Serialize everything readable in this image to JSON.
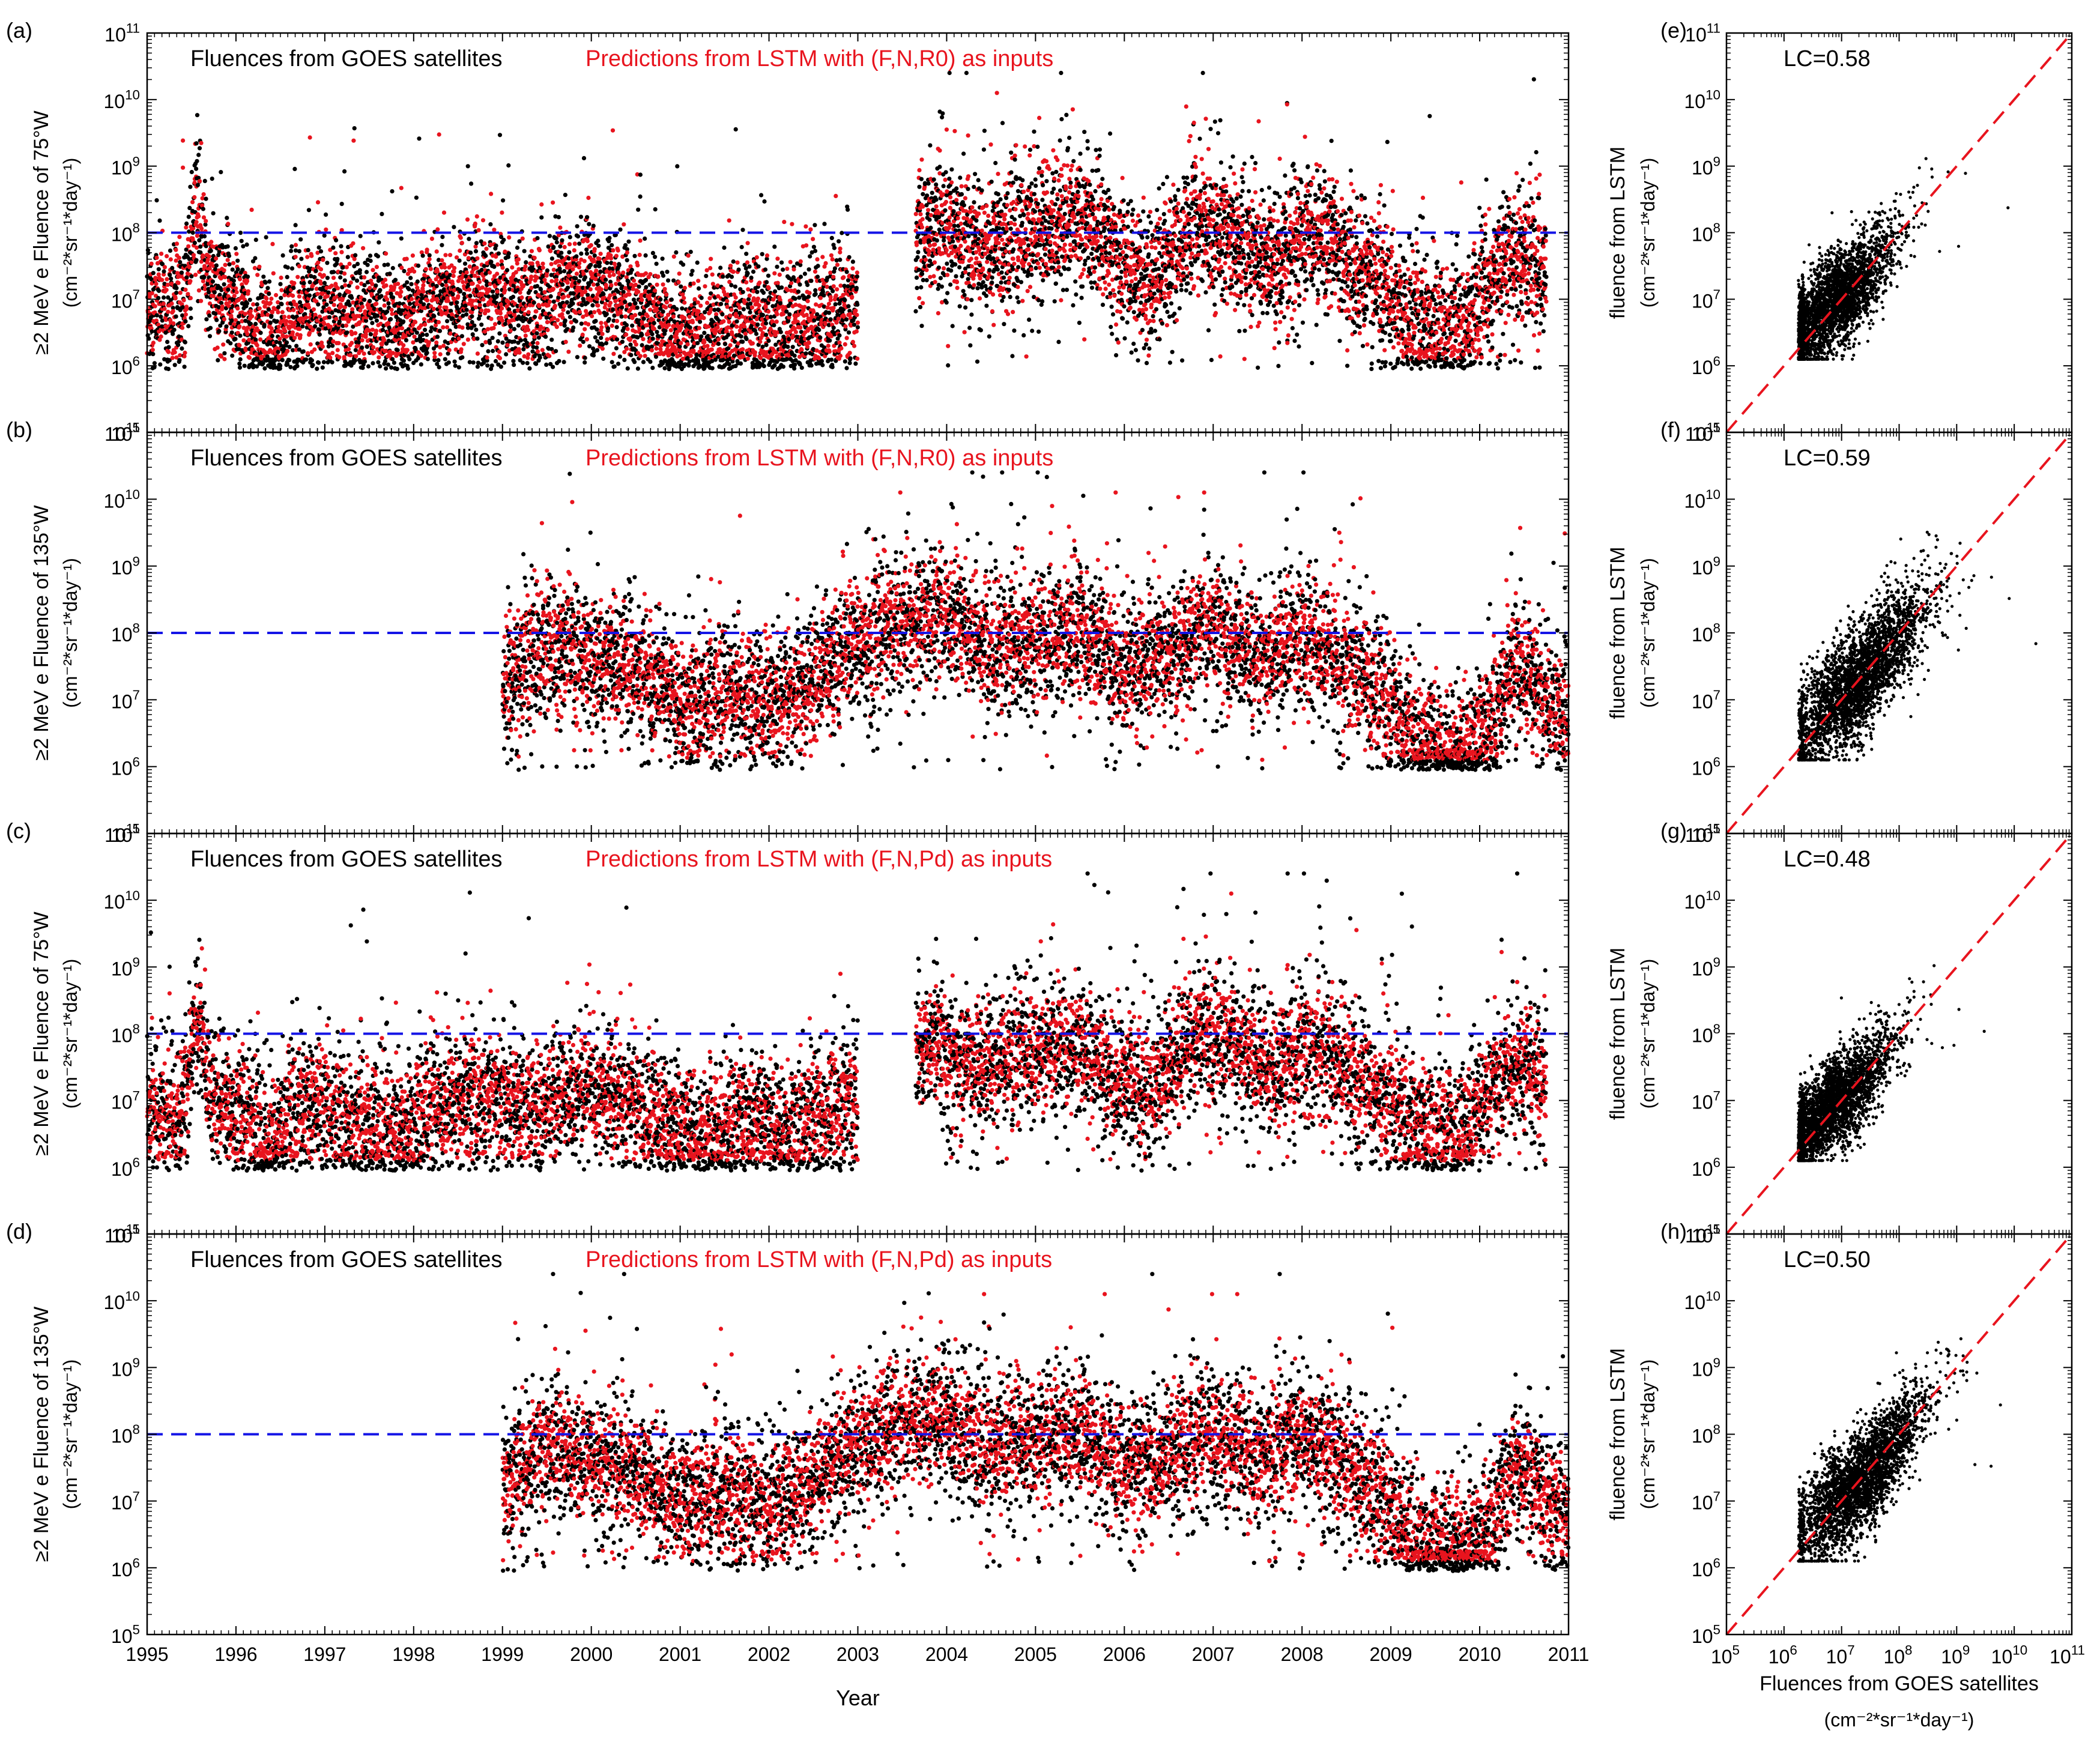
{
  "figure": {
    "xlabel": "Year",
    "scatter_xlabel": "Fluences from GOES satellites",
    "scatter_xunit": "(cm⁻²*sr⁻¹*day⁻¹)",
    "colors": {
      "observed": "#000000",
      "predicted": "#e8141e",
      "threshold": "#1414e6",
      "diagonal": "#e8141e"
    }
  },
  "chart_data": [
    {
      "id": "a",
      "panel_label": "(a)",
      "type": "scatter",
      "ylabel_line1": "≥2 MeV e Fluence of 75°W",
      "ylabel_line2": "(cm⁻²*sr⁻¹*day⁻¹)",
      "legend_black": "Fluences from GOES satellites",
      "legend_red": "Predictions from LSTM with (F,N,R0) as inputs",
      "x_range": [
        1995,
        2011
      ],
      "ylim_log10": [
        5,
        11
      ],
      "threshold": 100000000.0,
      "x_ticks": [
        "1995",
        "1996",
        "1997",
        "1998",
        "1999",
        "2000",
        "2001",
        "2002",
        "2003",
        "2004",
        "2005",
        "2006",
        "2007",
        "2008",
        "2009",
        "2010",
        "2011"
      ],
      "y_tick_exponents": [
        "5",
        "6",
        "7",
        "8",
        "9",
        "10",
        "11"
      ],
      "gap": [
        2003.0,
        2003.65
      ],
      "segments": [
        {
          "start": 1995.0,
          "end": 2003.0,
          "log_fluence": [
            [
              1995.0,
              6.9
            ],
            [
              1995.4,
              6.8
            ],
            [
              1995.55,
              8.4
            ],
            [
              1995.7,
              7.2
            ],
            [
              1996.0,
              6.8
            ],
            [
              1996.4,
              6.4
            ],
            [
              1996.8,
              6.9
            ],
            [
              1997.3,
              6.7
            ],
            [
              1997.8,
              6.6
            ],
            [
              1998.3,
              6.9
            ],
            [
              1998.8,
              7.1
            ],
            [
              1999.3,
              6.8
            ],
            [
              1999.8,
              7.2
            ],
            [
              2000.3,
              7.0
            ],
            [
              2000.8,
              6.6
            ],
            [
              2001.2,
              6.4
            ],
            [
              2001.7,
              6.7
            ],
            [
              2002.2,
              6.5
            ],
            [
              2002.7,
              6.8
            ],
            [
              2003.0,
              7.0
            ]
          ]
        },
        {
          "start": 2003.65,
          "end": 2010.75,
          "log_fluence": [
            [
              2003.65,
              8.0
            ],
            [
              2004.0,
              8.1
            ],
            [
              2004.5,
              7.7
            ],
            [
              2005.0,
              8.0
            ],
            [
              2005.5,
              8.2
            ],
            [
              2005.9,
              7.6
            ],
            [
              2006.3,
              7.2
            ],
            [
              2006.8,
              8.1
            ],
            [
              2007.2,
              7.9
            ],
            [
              2007.7,
              7.5
            ],
            [
              2008.1,
              8.0
            ],
            [
              2008.5,
              7.6
            ],
            [
              2008.9,
              7.2
            ],
            [
              2009.3,
              6.6
            ],
            [
              2009.8,
              6.5
            ],
            [
              2010.2,
              7.4
            ],
            [
              2010.5,
              7.6
            ],
            [
              2010.75,
              7.3
            ]
          ]
        }
      ]
    },
    {
      "id": "b",
      "panel_label": "(b)",
      "type": "scatter",
      "ylabel_line1": "≥2 MeV e Fluence of 135°W",
      "ylabel_line2": "(cm⁻²*sr⁻¹*day⁻¹)",
      "legend_black": "Fluences from GOES satellites",
      "legend_red": "Predictions from LSTM with (F,N,R0) as inputs",
      "x_range": [
        1995,
        2011
      ],
      "ylim_log10": [
        5,
        11
      ],
      "threshold": 100000000.0,
      "x_ticks": [
        "1995",
        "1996",
        "1997",
        "1998",
        "1999",
        "2000",
        "2001",
        "2002",
        "2003",
        "2004",
        "2005",
        "2006",
        "2007",
        "2008",
        "2009",
        "2010",
        "2011"
      ],
      "y_tick_exponents": [
        "5",
        "6",
        "7",
        "8",
        "9",
        "10",
        "11"
      ],
      "gap": null,
      "segments": [
        {
          "start": 1999.0,
          "end": 2011.0,
          "log_fluence": [
            [
              1999.0,
              7.1
            ],
            [
              1999.5,
              7.9
            ],
            [
              2000.0,
              7.6
            ],
            [
              2000.5,
              7.4
            ],
            [
              2001.0,
              6.9
            ],
            [
              2001.5,
              7.1
            ],
            [
              2002.0,
              6.9
            ],
            [
              2002.5,
              7.3
            ],
            [
              2003.0,
              7.8
            ],
            [
              2003.5,
              8.1
            ],
            [
              2004.0,
              8.3
            ],
            [
              2004.5,
              7.8
            ],
            [
              2005.0,
              7.9
            ],
            [
              2005.5,
              8.0
            ],
            [
              2006.0,
              7.4
            ],
            [
              2006.5,
              7.7
            ],
            [
              2007.0,
              8.0
            ],
            [
              2007.5,
              7.6
            ],
            [
              2008.0,
              7.9
            ],
            [
              2008.5,
              7.5
            ],
            [
              2008.9,
              7.0
            ],
            [
              2009.3,
              6.3
            ],
            [
              2009.8,
              6.2
            ],
            [
              2010.1,
              6.5
            ],
            [
              2010.4,
              7.6
            ],
            [
              2010.7,
              7.0
            ],
            [
              2011.0,
              6.7
            ]
          ]
        }
      ]
    },
    {
      "id": "c",
      "panel_label": "(c)",
      "type": "scatter",
      "ylabel_line1": "≥2 MeV e Fluence of 75°W",
      "ylabel_line2": "(cm⁻²*sr⁻¹*day⁻¹)",
      "legend_black": "Fluences from GOES satellites",
      "legend_red": "Predictions from LSTM with (F,N,Pd) as inputs",
      "x_range": [
        1995,
        2011
      ],
      "ylim_log10": [
        5,
        11
      ],
      "threshold": 100000000.0,
      "x_ticks": [
        "1995",
        "1996",
        "1997",
        "1998",
        "1999",
        "2000",
        "2001",
        "2002",
        "2003",
        "2004",
        "2005",
        "2006",
        "2007",
        "2008",
        "2009",
        "2010",
        "2011"
      ],
      "y_tick_exponents": [
        "5",
        "6",
        "7",
        "8",
        "9",
        "10",
        "11"
      ],
      "gap": [
        2003.0,
        2003.65
      ],
      "segments": [
        {
          "start": 1995.0,
          "end": 2003.0,
          "log_fluence": [
            [
              1995.0,
              6.9
            ],
            [
              1995.4,
              6.8
            ],
            [
              1995.55,
              8.3
            ],
            [
              1995.7,
              7.1
            ],
            [
              1996.0,
              6.8
            ],
            [
              1996.4,
              6.4
            ],
            [
              1996.8,
              6.9
            ],
            [
              1997.3,
              6.7
            ],
            [
              1997.8,
              6.5
            ],
            [
              1998.3,
              6.9
            ],
            [
              1998.8,
              7.0
            ],
            [
              1999.3,
              6.8
            ],
            [
              1999.8,
              7.1
            ],
            [
              2000.3,
              7.0
            ],
            [
              2000.8,
              6.6
            ],
            [
              2001.2,
              6.4
            ],
            [
              2001.7,
              6.7
            ],
            [
              2002.2,
              6.5
            ],
            [
              2002.7,
              6.8
            ],
            [
              2003.0,
              7.0
            ]
          ]
        },
        {
          "start": 2003.65,
          "end": 2010.75,
          "log_fluence": [
            [
              2003.65,
              7.9
            ],
            [
              2004.0,
              7.6
            ],
            [
              2004.5,
              7.5
            ],
            [
              2005.0,
              7.8
            ],
            [
              2005.5,
              7.8
            ],
            [
              2005.9,
              7.4
            ],
            [
              2006.3,
              7.1
            ],
            [
              2006.8,
              7.9
            ],
            [
              2007.2,
              7.8
            ],
            [
              2007.7,
              7.4
            ],
            [
              2008.1,
              7.8
            ],
            [
              2008.5,
              7.4
            ],
            [
              2008.9,
              7.1
            ],
            [
              2009.3,
              6.6
            ],
            [
              2009.8,
              6.5
            ],
            [
              2010.2,
              7.3
            ],
            [
              2010.5,
              7.5
            ],
            [
              2010.75,
              7.2
            ]
          ]
        }
      ]
    },
    {
      "id": "d",
      "panel_label": "(d)",
      "type": "scatter",
      "ylabel_line1": "≥2 MeV e Fluence of 135°W",
      "ylabel_line2": "(cm⁻²*sr⁻¹*day⁻¹)",
      "legend_black": "Fluences from GOES satellites",
      "legend_red": "Predictions from LSTM with (F,N,Pd) as inputs",
      "x_range": [
        1995,
        2011
      ],
      "ylim_log10": [
        5,
        11
      ],
      "threshold": 100000000.0,
      "x_ticks": [
        "1995",
        "1996",
        "1997",
        "1998",
        "1999",
        "2000",
        "2001",
        "2002",
        "2003",
        "2004",
        "2005",
        "2006",
        "2007",
        "2008",
        "2009",
        "2010",
        "2011"
      ],
      "y_tick_exponents": [
        "5",
        "6",
        "7",
        "8",
        "9",
        "10",
        "11"
      ],
      "gap": null,
      "segments": [
        {
          "start": 1999.0,
          "end": 2011.0,
          "log_fluence": [
            [
              1999.0,
              7.1
            ],
            [
              1999.5,
              7.8
            ],
            [
              2000.0,
              7.5
            ],
            [
              2000.5,
              7.4
            ],
            [
              2001.0,
              6.9
            ],
            [
              2001.5,
              7.1
            ],
            [
              2002.0,
              6.9
            ],
            [
              2002.5,
              7.3
            ],
            [
              2003.0,
              7.8
            ],
            [
              2003.5,
              8.1
            ],
            [
              2004.0,
              8.2
            ],
            [
              2004.5,
              7.8
            ],
            [
              2005.0,
              7.9
            ],
            [
              2005.5,
              8.0
            ],
            [
              2006.0,
              7.4
            ],
            [
              2006.5,
              7.7
            ],
            [
              2007.0,
              8.0
            ],
            [
              2007.5,
              7.6
            ],
            [
              2008.0,
              7.9
            ],
            [
              2008.5,
              7.5
            ],
            [
              2008.9,
              7.0
            ],
            [
              2009.3,
              6.3
            ],
            [
              2009.8,
              6.2
            ],
            [
              2010.1,
              6.5
            ],
            [
              2010.4,
              7.6
            ],
            [
              2010.7,
              7.0
            ],
            [
              2011.0,
              6.7
            ]
          ]
        }
      ]
    },
    {
      "id": "e",
      "panel_label": "(e)",
      "type": "scatter",
      "lc_text": "LC=0.58",
      "ylabel_line1": "fluence from LSTM",
      "ylabel_line2": "(cm⁻²*sr⁻¹*day⁻¹)",
      "xlim_log10": [
        5,
        11
      ],
      "ylim_log10": [
        5,
        11
      ],
      "y_tick_exponents": [
        "5",
        "6",
        "7",
        "8",
        "9",
        "10",
        "11"
      ],
      "x_tick_exponents": [],
      "scatter_spread": 0.35,
      "x_center": [
        6.8,
        0.55
      ]
    },
    {
      "id": "f",
      "panel_label": "(f)",
      "type": "scatter",
      "lc_text": "LC=0.59",
      "ylabel_line1": "fluence from LSTM",
      "ylabel_line2": "(cm⁻²*sr⁻¹*day⁻¹)",
      "xlim_log10": [
        5,
        11
      ],
      "ylim_log10": [
        5,
        11
      ],
      "y_tick_exponents": [
        "5",
        "6",
        "7",
        "8",
        "9",
        "10",
        "11"
      ],
      "x_tick_exponents": [],
      "scatter_spread": 0.4,
      "x_center": [
        7.3,
        0.6
      ]
    },
    {
      "id": "g",
      "panel_label": "(g)",
      "type": "scatter",
      "lc_text": "LC=0.48",
      "ylabel_line1": "fluence from LSTM",
      "ylabel_line2": "(cm⁻²*sr⁻¹*day⁻¹)",
      "xlim_log10": [
        5,
        11
      ],
      "ylim_log10": [
        5,
        11
      ],
      "y_tick_exponents": [
        "5",
        "6",
        "7",
        "8",
        "9",
        "10",
        "11"
      ],
      "x_tick_exponents": [],
      "scatter_spread": 0.33,
      "x_center": [
        6.8,
        0.55
      ]
    },
    {
      "id": "h",
      "panel_label": "(h)",
      "type": "scatter",
      "lc_text": "LC=0.50",
      "ylabel_line1": "fluence from LSTM",
      "ylabel_line2": "(cm⁻²*sr⁻¹*day⁻¹)",
      "xlim_log10": [
        5,
        11
      ],
      "ylim_log10": [
        5,
        11
      ],
      "y_tick_exponents": [
        "5",
        "6",
        "7",
        "8",
        "9",
        "10",
        "11"
      ],
      "x_tick_exponents": [
        "5",
        "6",
        "7",
        "8",
        "9",
        "10",
        "11"
      ],
      "scatter_spread": 0.38,
      "x_center": [
        7.3,
        0.6
      ]
    }
  ]
}
